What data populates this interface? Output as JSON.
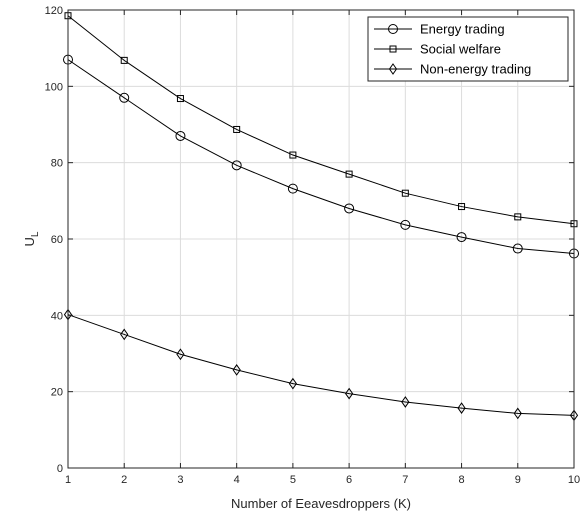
{
  "chart_data": {
    "type": "line",
    "xlabel": "Number of Eeavesdroppers (K)",
    "ylabel": {
      "main": "U",
      "sub": "L"
    },
    "x": [
      1,
      2,
      3,
      4,
      5,
      6,
      7,
      8,
      9,
      10
    ],
    "xlim": [
      1,
      10
    ],
    "ylim": [
      0,
      120
    ],
    "xticks": [
      1,
      2,
      3,
      4,
      5,
      6,
      7,
      8,
      9,
      10
    ],
    "yticks": [
      0,
      20,
      40,
      60,
      80,
      100,
      120
    ],
    "grid": true,
    "legend_position": "top-right",
    "series": [
      {
        "name": "Energy trading",
        "marker": "circle",
        "color": "#000000",
        "values": [
          107,
          97,
          87,
          79.3,
          73.2,
          68,
          63.7,
          60.5,
          57.5,
          56.2
        ]
      },
      {
        "name": "Social welfare",
        "marker": "square",
        "color": "#000000",
        "values": [
          118.5,
          106.8,
          96.8,
          88.7,
          82,
          77,
          72,
          68.5,
          65.8,
          64
        ]
      },
      {
        "name": "Non-energy trading",
        "marker": "diamond",
        "color": "#000000",
        "values": [
          40.2,
          35,
          29.8,
          25.7,
          22.1,
          19.5,
          17.3,
          15.7,
          14.3,
          13.8
        ]
      }
    ]
  }
}
